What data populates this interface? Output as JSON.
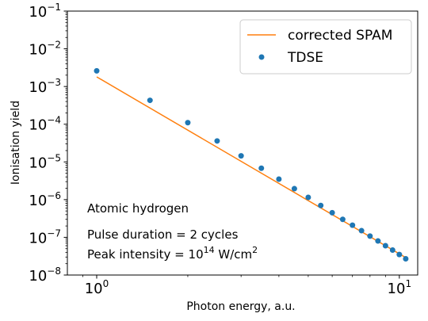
{
  "chart_data": {
    "type": "scatter",
    "xlabel": "Photon energy, a.u.",
    "ylabel": "Ionisation yield",
    "xscale": "log",
    "yscale": "log",
    "xlim": [
      0.8,
      11.5
    ],
    "ylim": [
      1e-08,
      0.1
    ],
    "grid": false,
    "legend_placement": "top-right",
    "x_ticks": [
      {
        "value": 1,
        "base": "10",
        "exp": "0"
      },
      {
        "value": 10,
        "base": "10",
        "exp": "1"
      }
    ],
    "y_ticks": [
      {
        "value": 1e-08,
        "base": "10",
        "exp": "−8"
      },
      {
        "value": 1e-07,
        "base": "10",
        "exp": "−7"
      },
      {
        "value": 1e-06,
        "base": "10",
        "exp": "−6"
      },
      {
        "value": 1e-05,
        "base": "10",
        "exp": "−5"
      },
      {
        "value": 0.0001,
        "base": "10",
        "exp": "−4"
      },
      {
        "value": 0.001,
        "base": "10",
        "exp": "−3"
      },
      {
        "value": 0.01,
        "base": "10",
        "exp": "−2"
      },
      {
        "value": 0.1,
        "base": "10",
        "exp": "−1"
      }
    ],
    "series": [
      {
        "name": "corrected SPAM",
        "kind": "line",
        "color": "#ff7f0e",
        "x": [
          1.0,
          10.5
        ],
        "y": [
          0.0018,
          2.9e-08
        ]
      },
      {
        "name": "TDSE",
        "kind": "scatter",
        "color": "#1f77b4",
        "x": [
          1.0,
          1.5,
          2.0,
          2.5,
          3.0,
          3.5,
          4.0,
          4.5,
          5.0,
          5.5,
          6.0,
          6.5,
          7.0,
          7.5,
          8.0,
          8.5,
          9.0,
          9.5,
          10.0,
          10.5
        ],
        "y": [
          0.0026,
          0.00043,
          0.00011,
          3.6e-05,
          1.45e-05,
          6.8e-06,
          3.5e-06,
          1.95e-06,
          1.15e-06,
          7e-07,
          4.5e-07,
          3e-07,
          2.1e-07,
          1.5e-07,
          1.08e-07,
          8e-08,
          6e-08,
          4.6e-08,
          3.5e-08,
          2.7e-08
        ]
      }
    ],
    "annotations": [
      {
        "id": "system",
        "parts": [
          {
            "t": "Atomic hydrogen"
          }
        ]
      },
      {
        "id": "pulse",
        "parts": [
          {
            "t": "Pulse duration = 2 cycles"
          }
        ]
      },
      {
        "id": "intensity",
        "parts": [
          {
            "t": "Peak intensity = 10"
          },
          {
            "t": "14",
            "sup": true
          },
          {
            "t": " W/cm"
          },
          {
            "t": "2",
            "sup": true
          }
        ]
      }
    ]
  }
}
